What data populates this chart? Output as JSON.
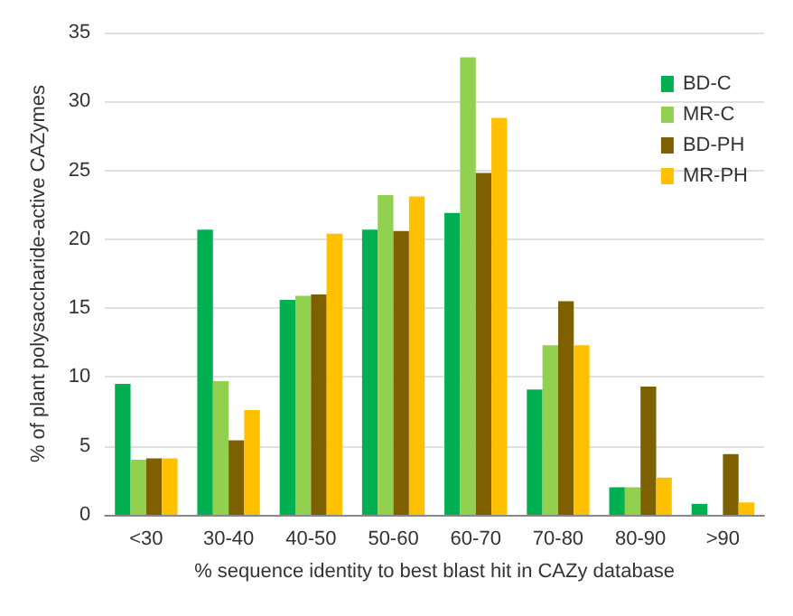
{
  "chart_data": {
    "type": "bar",
    "xlabel": "% sequence identity to best blast hit in CAZy database",
    "ylabel": "% of plant polysaccharide-active CAZymes",
    "categories": [
      "<30",
      "30-40",
      "40-50",
      "50-60",
      "60-70",
      "70-80",
      "80-90",
      ">90"
    ],
    "series": [
      {
        "name": "BD-C",
        "color": "#00b050",
        "values": [
          9.5,
          20.7,
          15.6,
          20.7,
          21.9,
          9.1,
          2.0,
          0.8
        ]
      },
      {
        "name": "MR-C",
        "color": "#92d050",
        "values": [
          4.0,
          9.7,
          15.9,
          23.2,
          33.2,
          12.3,
          2.0,
          0
        ]
      },
      {
        "name": "BD-PH",
        "color": "#7f6000",
        "values": [
          4.1,
          5.4,
          16.0,
          20.6,
          24.8,
          15.5,
          9.3,
          4.4
        ]
      },
      {
        "name": "MR-PH",
        "color": "#ffc000",
        "values": [
          4.1,
          7.6,
          20.4,
          23.1,
          28.8,
          12.3,
          2.7,
          0.9
        ]
      }
    ],
    "ylim": [
      0,
      35
    ],
    "yticks": [
      0,
      5,
      10,
      15,
      20,
      25,
      30,
      35
    ],
    "grid": "y",
    "legend": "top right"
  }
}
